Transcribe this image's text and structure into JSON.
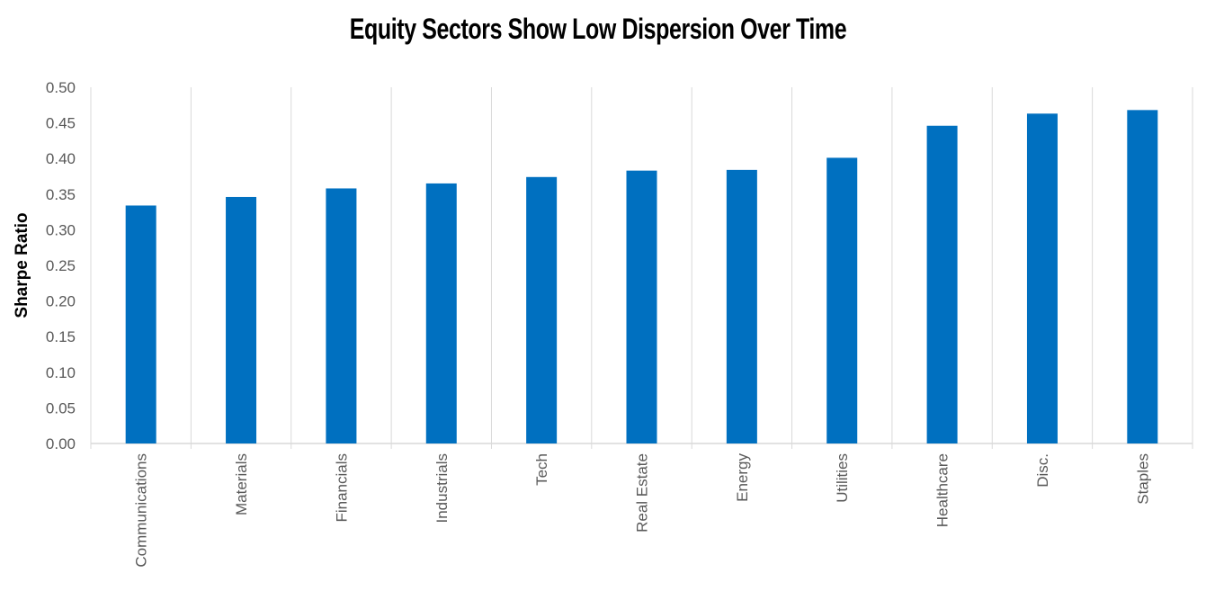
{
  "chart_data": {
    "type": "bar",
    "title": "Equity Sectors Show Low Dispersion Over Time",
    "xlabel": "",
    "ylabel": "Sharpe Ratio",
    "categories": [
      "Communications",
      "Materials",
      "Financials",
      "Industrials",
      "Tech",
      "Real Estate",
      "Energy",
      "Utilities",
      "Healthcare",
      "Disc.",
      "Staples"
    ],
    "values": [
      0.334,
      0.346,
      0.358,
      0.365,
      0.374,
      0.383,
      0.384,
      0.401,
      0.446,
      0.463,
      0.468
    ],
    "ylim": [
      0,
      0.5
    ],
    "yticks": [
      "0.00",
      "0.05",
      "0.10",
      "0.15",
      "0.20",
      "0.25",
      "0.30",
      "0.35",
      "0.40",
      "0.45",
      "0.50"
    ],
    "grid": "vertical separators between categories",
    "colors": {
      "bar": "#0070C0",
      "grid": "#D9D9D9",
      "axis_text": "#595959"
    }
  }
}
